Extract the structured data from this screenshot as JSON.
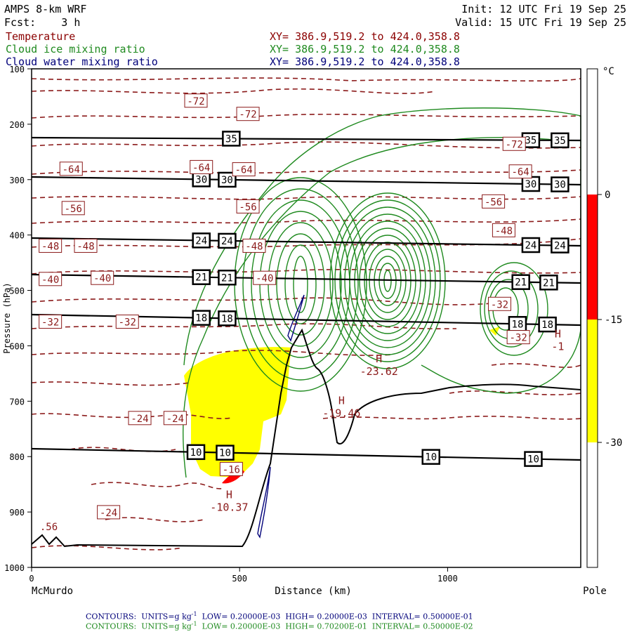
{
  "header": {
    "model": "AMPS 8-km WRF",
    "fcst_label": "Fcst:",
    "fcst_value": "3 h",
    "init": "Init: 12 UTC Fri 19 Sep 25",
    "valid": "Valid: 15 UTC Fri 19 Sep 25",
    "fields": [
      {
        "name": "Temperature",
        "xy": "XY= 386.9,519.2 to 424.0,358.8",
        "color": "#8b0000"
      },
      {
        "name": "Cloud ice mixing ratio",
        "xy": "XY= 386.9,519.2 to 424.0,358.8",
        "color": "#1f8a1f"
      },
      {
        "name": "Cloud water mixing ratio",
        "xy": "XY= 386.9,519.2 to 424.0,358.8",
        "color": "#00007a"
      }
    ]
  },
  "footer": {
    "line1": {
      "label": "CONTOURS:",
      "units": "UNITS=g kg",
      "low": "LOW= 0.20000E-03",
      "high": "HIGH= 0.20000E-03",
      "interval": "INTERVAL= 0.50000E-01",
      "color": "#00007a"
    },
    "line2": {
      "label": "CONTOURS:",
      "units": "UNITS=g kg",
      "low": "LOW= 0.20000E-03",
      "high": "HIGH= 0.70200E-01",
      "interval": "INTERVAL= 0.50000E-02",
      "color": "#1f8a1f"
    },
    "units_exp": "-1"
  },
  "chart_data": {
    "type": "contour-cross-section",
    "x_axis": {
      "label": "Distance (km)",
      "range": [
        0,
        1320
      ],
      "ticks": [
        0,
        500,
        1000
      ],
      "start_label": "McMurdo",
      "end_label": "Pole"
    },
    "y_axis": {
      "label": "Pressure (hPa)",
      "range": [
        1000,
        100
      ],
      "ticks": [
        100,
        200,
        300,
        400,
        500,
        600,
        700,
        800,
        900,
        1000
      ]
    },
    "colorbar": {
      "unit": "°C",
      "ticks": [
        "0",
        "-15",
        "-30"
      ],
      "bands": [
        {
          "from": "top",
          "to": 0,
          "color": "#ffffff"
        },
        {
          "from": 0,
          "to": -15,
          "color": "#ff0000"
        },
        {
          "from": -15,
          "to": -30,
          "color": "#ffff00"
        },
        {
          "from": -30,
          "to": "bottom",
          "color": "#ffffff"
        }
      ]
    },
    "potential_temperature_lines": [
      {
        "value": 35,
        "y_left": 196,
        "y_right": 200,
        "labels_x": [
          480,
          1200,
          1270
        ]
      },
      {
        "value": 30,
        "y_left": 252,
        "y_right": 263,
        "labels_x": [
          408,
          470,
          1200,
          1270
        ]
      },
      {
        "value": 24,
        "y_left": 339,
        "y_right": 350,
        "labels_x": [
          408,
          470,
          1200,
          1270
        ]
      },
      {
        "value": 21,
        "y_left": 391,
        "y_right": 403,
        "labels_x": [
          408,
          470,
          1176,
          1243
        ]
      },
      {
        "value": 18,
        "y_left": 448,
        "y_right": 463,
        "labels_x": [
          408,
          470,
          1168,
          1240
        ]
      },
      {
        "value": 10,
        "y_left": 639,
        "y_right": 655,
        "labels_x": [
          395,
          465,
          960,
          1206
        ]
      }
    ],
    "temperature_labels": [
      {
        "text": "-72",
        "x": 395,
        "p": 158
      },
      {
        "text": "-72",
        "x": 520,
        "p": 182
      },
      {
        "text": "-72",
        "x": 1160,
        "p": 236
      },
      {
        "text": "-64",
        "x": 95,
        "p": 281
      },
      {
        "text": "-64",
        "x": 408,
        "p": 278
      },
      {
        "text": "-64",
        "x": 510,
        "p": 282
      },
      {
        "text": "-64",
        "x": 1175,
        "p": 286
      },
      {
        "text": "-56",
        "x": 100,
        "p": 352
      },
      {
        "text": "-56",
        "x": 520,
        "p": 349
      },
      {
        "text": "-56",
        "x": 1110,
        "p": 340
      },
      {
        "text": "-48",
        "x": 45,
        "p": 420
      },
      {
        "text": "-48",
        "x": 130,
        "p": 420
      },
      {
        "text": "-48",
        "x": 535,
        "p": 420
      },
      {
        "text": "-48",
        "x": 1135,
        "p": 392
      },
      {
        "text": "-40",
        "x": 45,
        "p": 480
      },
      {
        "text": "-40",
        "x": 170,
        "p": 478
      },
      {
        "text": "-40",
        "x": 560,
        "p": 478
      },
      {
        "text": "-32",
        "x": 45,
        "p": 557
      },
      {
        "text": "-32",
        "x": 230,
        "p": 557
      },
      {
        "text": "-32",
        "x": 1125,
        "p": 525
      },
      {
        "text": "-32",
        "x": 1170,
        "p": 585
      },
      {
        "text": "-24",
        "x": 260,
        "p": 731
      },
      {
        "text": "-24",
        "x": 345,
        "p": 731
      },
      {
        "text": "-24",
        "x": 185,
        "p": 901
      },
      {
        "text": "-16",
        "x": 480,
        "p": 823
      }
    ],
    "extrema": [
      {
        "type": "H",
        "value": "-10.37",
        "x": 475,
        "p": 875
      },
      {
        "type": "H",
        "value": "-19.46",
        "x": 745,
        "p": 705
      },
      {
        "type": "H",
        "value": "-23.62",
        "x": 835,
        "p": 630
      },
      {
        "type": "H",
        "value": "-1",
        "x": 1265,
        "p": 585
      }
    ],
    "edge_labels": [
      {
        "text": ".56",
        "x": 20,
        "p": 933
      }
    ]
  }
}
